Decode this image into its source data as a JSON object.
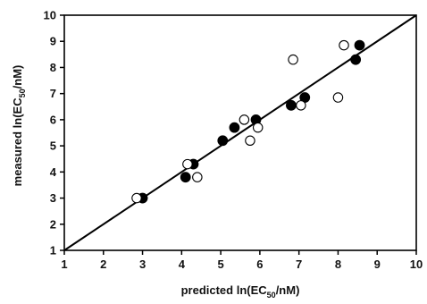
{
  "chart_data": {
    "type": "scatter",
    "xlabel": "predicted ln(EC50/nM)",
    "ylabel": "measured ln(EC50/nM)",
    "xlabel_parts": {
      "pre": "predicted ln(EC",
      "sub": "50",
      "post": "/nM)"
    },
    "ylabel_parts": {
      "pre": "measured ln(EC",
      "sub": "50",
      "post": "/nM)"
    },
    "xlim": [
      1,
      10
    ],
    "ylim": [
      1,
      10
    ],
    "xticks": [
      "1",
      "2",
      "3",
      "4",
      "5",
      "6",
      "7",
      "8",
      "9",
      "10"
    ],
    "yticks": [
      "1",
      "2",
      "3",
      "4",
      "5",
      "6",
      "7",
      "8",
      "9",
      "10"
    ],
    "grid": false,
    "reference_line": {
      "x": [
        1,
        10
      ],
      "y": [
        1,
        10
      ]
    },
    "series": [
      {
        "marker": "filled-circle",
        "color": "#000000",
        "points": [
          [
            3.0,
            3.0
          ],
          [
            4.1,
            3.8
          ],
          [
            4.3,
            4.3
          ],
          [
            5.05,
            5.2
          ],
          [
            5.35,
            5.7
          ],
          [
            5.9,
            6.0
          ],
          [
            6.8,
            6.55
          ],
          [
            7.15,
            6.85
          ],
          [
            8.45,
            8.3
          ],
          [
            8.55,
            8.85
          ]
        ]
      },
      {
        "marker": "open-circle",
        "color": "#000000",
        "points": [
          [
            2.85,
            3.0
          ],
          [
            4.15,
            4.3
          ],
          [
            4.4,
            3.8
          ],
          [
            5.6,
            6.0
          ],
          [
            5.75,
            5.2
          ],
          [
            5.95,
            5.7
          ],
          [
            6.85,
            8.3
          ],
          [
            7.05,
            6.55
          ],
          [
            8.0,
            6.85
          ],
          [
            8.15,
            8.85
          ]
        ]
      }
    ]
  }
}
